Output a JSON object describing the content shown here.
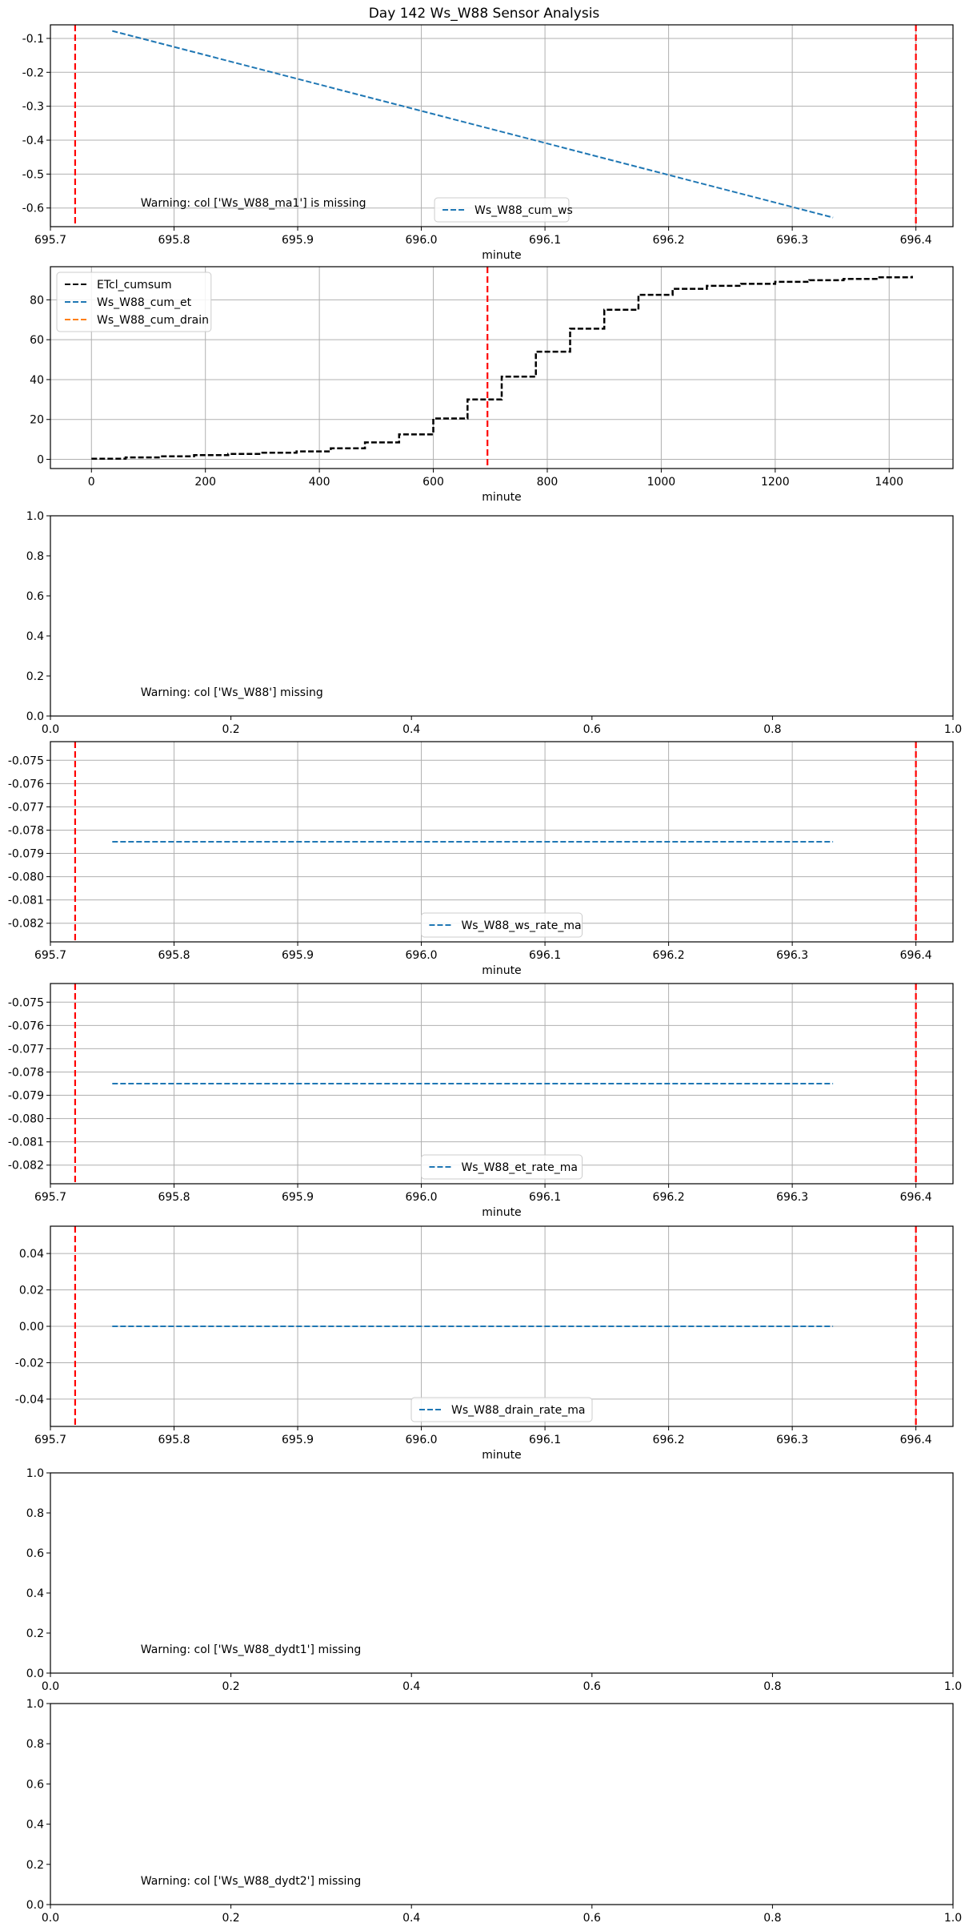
{
  "figure": {
    "title": "Day 142 Ws_W88 Sensor Analysis"
  },
  "chart_data": [
    {
      "type": "line",
      "xlabel": "minute",
      "ylabel": "",
      "xlim": [
        695.7,
        696.43
      ],
      "ylim": [
        -0.655,
        -0.06
      ],
      "xticks": [
        695.7,
        695.8,
        695.9,
        696.0,
        696.1,
        696.2,
        696.3,
        696.4
      ],
      "xtick_labels": [
        "695.7",
        "695.8",
        "695.9",
        "696.0",
        "696.1",
        "696.2",
        "696.3",
        "696.4"
      ],
      "yticks": [
        -0.1,
        -0.2,
        -0.3,
        -0.4,
        -0.5,
        -0.6
      ],
      "ytick_labels": [
        "-0.1",
        "-0.2",
        "-0.3",
        "-0.4",
        "-0.5",
        "-0.6"
      ],
      "grid": true,
      "series": [
        {
          "name": "Ws_W88_cum_ws",
          "color": "#1f77b4",
          "dash": true,
          "x": [
            695.75,
            696.333
          ],
          "y": [
            -0.078,
            -0.628
          ]
        }
      ],
      "vlines": [
        {
          "x": 695.72,
          "color": "#ff0000"
        },
        {
          "x": 696.4,
          "color": "#ff0000"
        }
      ],
      "legend": "lower center",
      "annotation": {
        "text": "Warning: col ['Ws_W88_ma1'] is missing",
        "x": 0.1,
        "y": 0.1
      }
    },
    {
      "type": "line",
      "xlabel": "minute",
      "ylabel": "",
      "xlim": [
        -72,
        1512
      ],
      "ylim": [
        -4.6,
        96.6
      ],
      "xticks": [
        0,
        200,
        400,
        600,
        800,
        1000,
        1200,
        1400
      ],
      "xtick_labels": [
        "0",
        "200",
        "400",
        "600",
        "800",
        "1000",
        "1200",
        "1400"
      ],
      "yticks": [
        0,
        20,
        40,
        60,
        80
      ],
      "ytick_labels": [
        "0",
        "20",
        "40",
        "60",
        "80"
      ],
      "grid": true,
      "series": [
        {
          "name": "ETcl_cumsum",
          "color": "#000000",
          "dash": true,
          "step": true,
          "x": [
            0,
            60,
            120,
            180,
            240,
            300,
            360,
            420,
            480,
            540,
            600,
            660,
            720,
            780,
            840,
            900,
            960,
            1020,
            1080,
            1140,
            1200,
            1260,
            1320,
            1380,
            1440
          ],
          "y": [
            0.3,
            1.0,
            1.5,
            2.1,
            2.7,
            3.3,
            4.0,
            5.5,
            8.5,
            12.5,
            20.5,
            30.0,
            41.5,
            54.0,
            65.5,
            75.0,
            82.5,
            85.5,
            87.0,
            88.0,
            89.0,
            89.8,
            90.5,
            91.3,
            92.0
          ]
        },
        {
          "name": "Ws_W88_cum_et",
          "color": "#1f77b4",
          "dash": true,
          "x": [],
          "y": []
        },
        {
          "name": "Ws_W88_cum_drain",
          "color": "#ff7f0e",
          "dash": true,
          "x": [],
          "y": []
        }
      ],
      "vlines": [
        {
          "x": 695,
          "color": "#ff0000"
        }
      ],
      "legend": "upper left"
    },
    {
      "type": "line",
      "xlabel": "",
      "ylabel": "",
      "xlim": [
        0,
        1
      ],
      "ylim": [
        0,
        1
      ],
      "xticks": [
        0,
        0.2,
        0.4,
        0.6,
        0.8,
        1.0
      ],
      "xtick_labels": [
        "0.0",
        "0.2",
        "0.4",
        "0.6",
        "0.8",
        "1.0"
      ],
      "yticks": [
        0,
        0.2,
        0.4,
        0.6,
        0.8,
        1.0
      ],
      "ytick_labels": [
        "0.0",
        "0.2",
        "0.4",
        "0.6",
        "0.8",
        "1.0"
      ],
      "grid": false,
      "series": [],
      "annotation": {
        "text": "Warning: col ['Ws_W88'] missing",
        "x": 0.1,
        "y": 0.1
      }
    },
    {
      "type": "line",
      "xlabel": "minute",
      "ylabel": "",
      "xlim": [
        695.7,
        696.43
      ],
      "ylim": [
        -0.0828,
        -0.0742
      ],
      "xticks": [
        695.7,
        695.8,
        695.9,
        696.0,
        696.1,
        696.2,
        696.3,
        696.4
      ],
      "xtick_labels": [
        "695.7",
        "695.8",
        "695.9",
        "696.0",
        "696.1",
        "696.2",
        "696.3",
        "696.4"
      ],
      "yticks": [
        -0.075,
        -0.076,
        -0.077,
        -0.078,
        -0.079,
        -0.08,
        -0.081,
        -0.082
      ],
      "ytick_labels": [
        "-0.075",
        "-0.076",
        "-0.077",
        "-0.078",
        "-0.079",
        "-0.080",
        "-0.081",
        "-0.082"
      ],
      "grid": true,
      "series": [
        {
          "name": "Ws_W88_ws_rate_ma",
          "color": "#1f77b4",
          "dash": true,
          "x": [
            695.75,
            696.333
          ],
          "y": [
            -0.0785,
            -0.0785
          ]
        }
      ],
      "vlines": [
        {
          "x": 695.72,
          "color": "#ff0000"
        },
        {
          "x": 696.4,
          "color": "#ff0000"
        }
      ],
      "legend": "lower center"
    },
    {
      "type": "line",
      "xlabel": "minute",
      "ylabel": "",
      "xlim": [
        695.7,
        696.43
      ],
      "ylim": [
        -0.0828,
        -0.0742
      ],
      "xticks": [
        695.7,
        695.8,
        695.9,
        696.0,
        696.1,
        696.2,
        696.3,
        696.4
      ],
      "xtick_labels": [
        "695.7",
        "695.8",
        "695.9",
        "696.0",
        "696.1",
        "696.2",
        "696.3",
        "696.4"
      ],
      "yticks": [
        -0.075,
        -0.076,
        -0.077,
        -0.078,
        -0.079,
        -0.08,
        -0.081,
        -0.082
      ],
      "ytick_labels": [
        "-0.075",
        "-0.076",
        "-0.077",
        "-0.078",
        "-0.079",
        "-0.080",
        "-0.081",
        "-0.082"
      ],
      "grid": true,
      "series": [
        {
          "name": "Ws_W88_et_rate_ma",
          "color": "#1f77b4",
          "dash": true,
          "x": [
            695.75,
            696.333
          ],
          "y": [
            -0.0785,
            -0.0785
          ]
        }
      ],
      "vlines": [
        {
          "x": 695.72,
          "color": "#ff0000"
        },
        {
          "x": 696.4,
          "color": "#ff0000"
        }
      ],
      "legend": "lower center"
    },
    {
      "type": "line",
      "xlabel": "minute",
      "ylabel": "",
      "xlim": [
        695.7,
        696.43
      ],
      "ylim": [
        -0.055,
        0.055
      ],
      "xticks": [
        695.7,
        695.8,
        695.9,
        696.0,
        696.1,
        696.2,
        696.3,
        696.4
      ],
      "xtick_labels": [
        "695.7",
        "695.8",
        "695.9",
        "696.0",
        "696.1",
        "696.2",
        "696.3",
        "696.4"
      ],
      "yticks": [
        0.04,
        0.02,
        0.0,
        -0.02,
        -0.04
      ],
      "ytick_labels": [
        "0.04",
        "0.02",
        "0.00",
        "-0.02",
        "-0.04"
      ],
      "grid": true,
      "series": [
        {
          "name": "Ws_W88_drain_rate_ma",
          "color": "#1f77b4",
          "dash": true,
          "x": [
            695.75,
            696.333
          ],
          "y": [
            0.0,
            0.0
          ]
        }
      ],
      "vlines": [
        {
          "x": 695.72,
          "color": "#ff0000"
        },
        {
          "x": 696.4,
          "color": "#ff0000"
        }
      ],
      "legend": "lower center"
    },
    {
      "type": "line",
      "xlabel": "",
      "ylabel": "",
      "xlim": [
        0,
        1
      ],
      "ylim": [
        0,
        1
      ],
      "xticks": [
        0,
        0.2,
        0.4,
        0.6,
        0.8,
        1.0
      ],
      "xtick_labels": [
        "0.0",
        "0.2",
        "0.4",
        "0.6",
        "0.8",
        "1.0"
      ],
      "yticks": [
        0,
        0.2,
        0.4,
        0.6,
        0.8,
        1.0
      ],
      "ytick_labels": [
        "0.0",
        "0.2",
        "0.4",
        "0.6",
        "0.8",
        "1.0"
      ],
      "grid": false,
      "series": [],
      "annotation": {
        "text": "Warning: col ['Ws_W88_dydt1'] missing",
        "x": 0.1,
        "y": 0.1
      }
    },
    {
      "type": "line",
      "xlabel": "",
      "ylabel": "",
      "xlim": [
        0,
        1
      ],
      "ylim": [
        0,
        1
      ],
      "xticks": [
        0,
        0.2,
        0.4,
        0.6,
        0.8,
        1.0
      ],
      "xtick_labels": [
        "0.0",
        "0.2",
        "0.4",
        "0.6",
        "0.8",
        "1.0"
      ],
      "yticks": [
        0,
        0.2,
        0.4,
        0.6,
        0.8,
        1.0
      ],
      "ytick_labels": [
        "0.0",
        "0.2",
        "0.4",
        "0.6",
        "0.8",
        "1.0"
      ],
      "grid": false,
      "series": [],
      "annotation": {
        "text": "Warning: col ['Ws_W88_dydt2'] missing",
        "x": 0.1,
        "y": 0.1
      }
    }
  ]
}
